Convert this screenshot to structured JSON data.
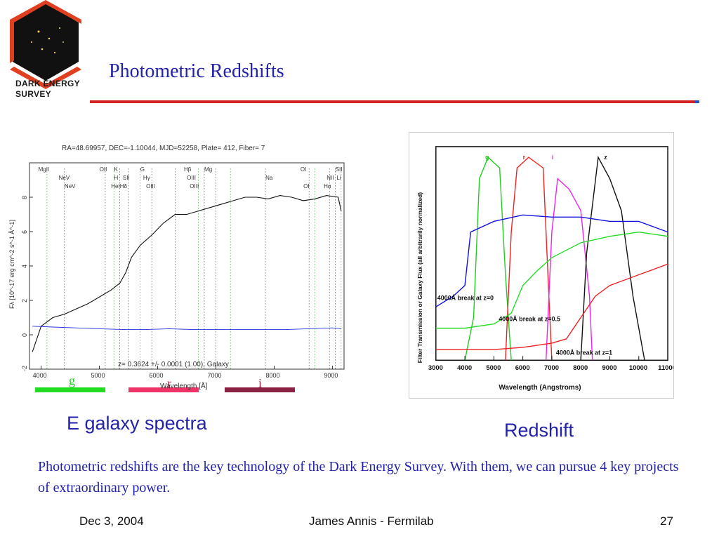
{
  "slide": {
    "title": "Photometric Redshifts",
    "logo_text_line1": "DARK ENERGY",
    "logo_text_line2": "SURVEY",
    "caption_left": "E galaxy spectra",
    "caption_right": "Redshift",
    "body": "Photometric redshifts are the key technology of the Dark Energy Survey. With them, we can pursue 4 key projects of extraordinary power.",
    "footer": {
      "date": "Dec 3, 2004",
      "author": "James Annis - Fermilab",
      "page": "27"
    },
    "bands": [
      {
        "label": "g",
        "color": "#22dd22"
      },
      {
        "label": "r",
        "color": "#ee3366"
      },
      {
        "label": "i",
        "color": "#8b2244"
      }
    ]
  },
  "chart_data": [
    {
      "type": "line",
      "title": "RA=48.69957, DEC=-1.10044, MJD=52258, Plate= 412, Fiber= 7",
      "annotation": "z= 0.3624 +/- 0.0001 (1.00), Galaxy",
      "xlabel": "Wavelength [Å]",
      "ylabel": "Fλ [10^-17 erg cm^-2 s^-1 Å^-1]",
      "xlim": [
        3800,
        9200
      ],
      "ylim": [
        -2,
        10
      ],
      "x_ticks": [
        "4000",
        "5000",
        "6000",
        "7000",
        "8000",
        "9000"
      ],
      "y_ticks": [
        "-2",
        "0",
        "2",
        "4",
        "6",
        "8"
      ],
      "line_labels": [
        "MgII",
        "NeV",
        "NeV",
        "OII",
        "H",
        "HeI",
        "K",
        "SII",
        "Hδ",
        "G",
        "Hγ",
        "OIII",
        "Hβ",
        "OIII",
        "OIII",
        "Mg",
        "Na",
        "OI",
        "OI",
        "NII",
        "Hα",
        "SII",
        "Li"
      ],
      "series": [
        {
          "color": "#111111",
          "x": [
            3850,
            4000,
            4200,
            4400,
            4600,
            4800,
            5000,
            5200,
            5350,
            5450,
            5550,
            5700,
            5900,
            6100,
            6300,
            6500,
            6700,
            6900,
            7100,
            7300,
            7500,
            7700,
            7900,
            8100,
            8300,
            8500,
            8700,
            8900,
            9100,
            9150
          ],
          "y": [
            -1,
            0.5,
            1,
            1.2,
            1.5,
            1.8,
            2.2,
            2.6,
            3,
            3.6,
            4.5,
            5.2,
            5.8,
            6.5,
            7,
            7,
            7.2,
            7.4,
            7.6,
            7.8,
            8,
            8,
            7.9,
            8.1,
            8,
            7.8,
            7.9,
            8.1,
            8,
            7.2
          ]
        },
        {
          "color": "#2233dd",
          "x": [
            3850,
            4200,
            4600,
            5000,
            5400,
            5800,
            6200,
            6600,
            7000,
            7400,
            7800,
            8200,
            8600,
            9000,
            9150
          ],
          "y": [
            0.5,
            0.45,
            0.4,
            0.35,
            0.3,
            0.3,
            0.35,
            0.3,
            0.3,
            0.3,
            0.3,
            0.3,
            0.35,
            0.4,
            0.35
          ]
        }
      ]
    },
    {
      "type": "line",
      "xlabel": "Wavelength (Angstroms)",
      "ylabel": "Filter Transmission or Galaxy Flux (all arbitrarily normalized)",
      "xlim": [
        3000,
        11000
      ],
      "x_ticks": [
        "3000",
        "4000",
        "5000",
        "6000",
        "7000",
        "8000",
        "9000",
        "10000",
        "11000"
      ],
      "filter_labels": [
        "g",
        "r",
        "i",
        "z"
      ],
      "annotations": [
        "4000Å break at z=0",
        "4000Å break at z=0.5",
        "4000Å break at z=1"
      ],
      "series": [
        {
          "name": "g",
          "color": "#22cc22",
          "x": [
            4000,
            4300,
            4500,
            4800,
            5200,
            5400,
            5600
          ],
          "y": [
            0,
            0.2,
            0.85,
            0.95,
            0.9,
            0.4,
            0
          ]
        },
        {
          "name": "r",
          "color": "#ee2222",
          "x": [
            5400,
            5600,
            5800,
            6200,
            6700,
            6900,
            7000
          ],
          "y": [
            0,
            0.6,
            0.9,
            0.95,
            0.9,
            0.3,
            0
          ]
        },
        {
          "name": "i",
          "color": "#ee22ee",
          "x": [
            6800,
            7000,
            7200,
            7600,
            8000,
            8300,
            8400
          ],
          "y": [
            0,
            0.6,
            0.85,
            0.8,
            0.7,
            0.3,
            0
          ]
        },
        {
          "name": "z",
          "color": "#111111",
          "x": [
            8000,
            8200,
            8600,
            9000,
            9400,
            9800,
            10200
          ],
          "y": [
            0,
            0.5,
            0.95,
            0.85,
            0.7,
            0.3,
            0
          ]
        },
        {
          "name": "4000Å break at z=0",
          "color": "#1111dd",
          "x": [
            3000,
            3600,
            4000,
            4200,
            5000,
            6000,
            7000,
            8000,
            9000,
            10000,
            11000
          ],
          "y": [
            0.25,
            0.3,
            0.35,
            0.6,
            0.65,
            0.68,
            0.67,
            0.67,
            0.65,
            0.65,
            0.6
          ]
        },
        {
          "name": "4000Å break at z=0.5",
          "color": "#22dd22",
          "x": [
            3000,
            4000,
            5000,
            5600,
            6000,
            6500,
            7000,
            8000,
            9000,
            10000,
            11000
          ],
          "y": [
            0.15,
            0.15,
            0.17,
            0.22,
            0.35,
            0.42,
            0.48,
            0.55,
            0.58,
            0.6,
            0.58
          ]
        },
        {
          "name": "4000Å break at z=1",
          "color": "#ee2222",
          "x": [
            3000,
            5000,
            6000,
            7000,
            7500,
            8000,
            8500,
            9000,
            10000,
            11000
          ],
          "y": [
            0.05,
            0.05,
            0.06,
            0.08,
            0.1,
            0.2,
            0.3,
            0.35,
            0.4,
            0.45
          ]
        }
      ]
    }
  ]
}
